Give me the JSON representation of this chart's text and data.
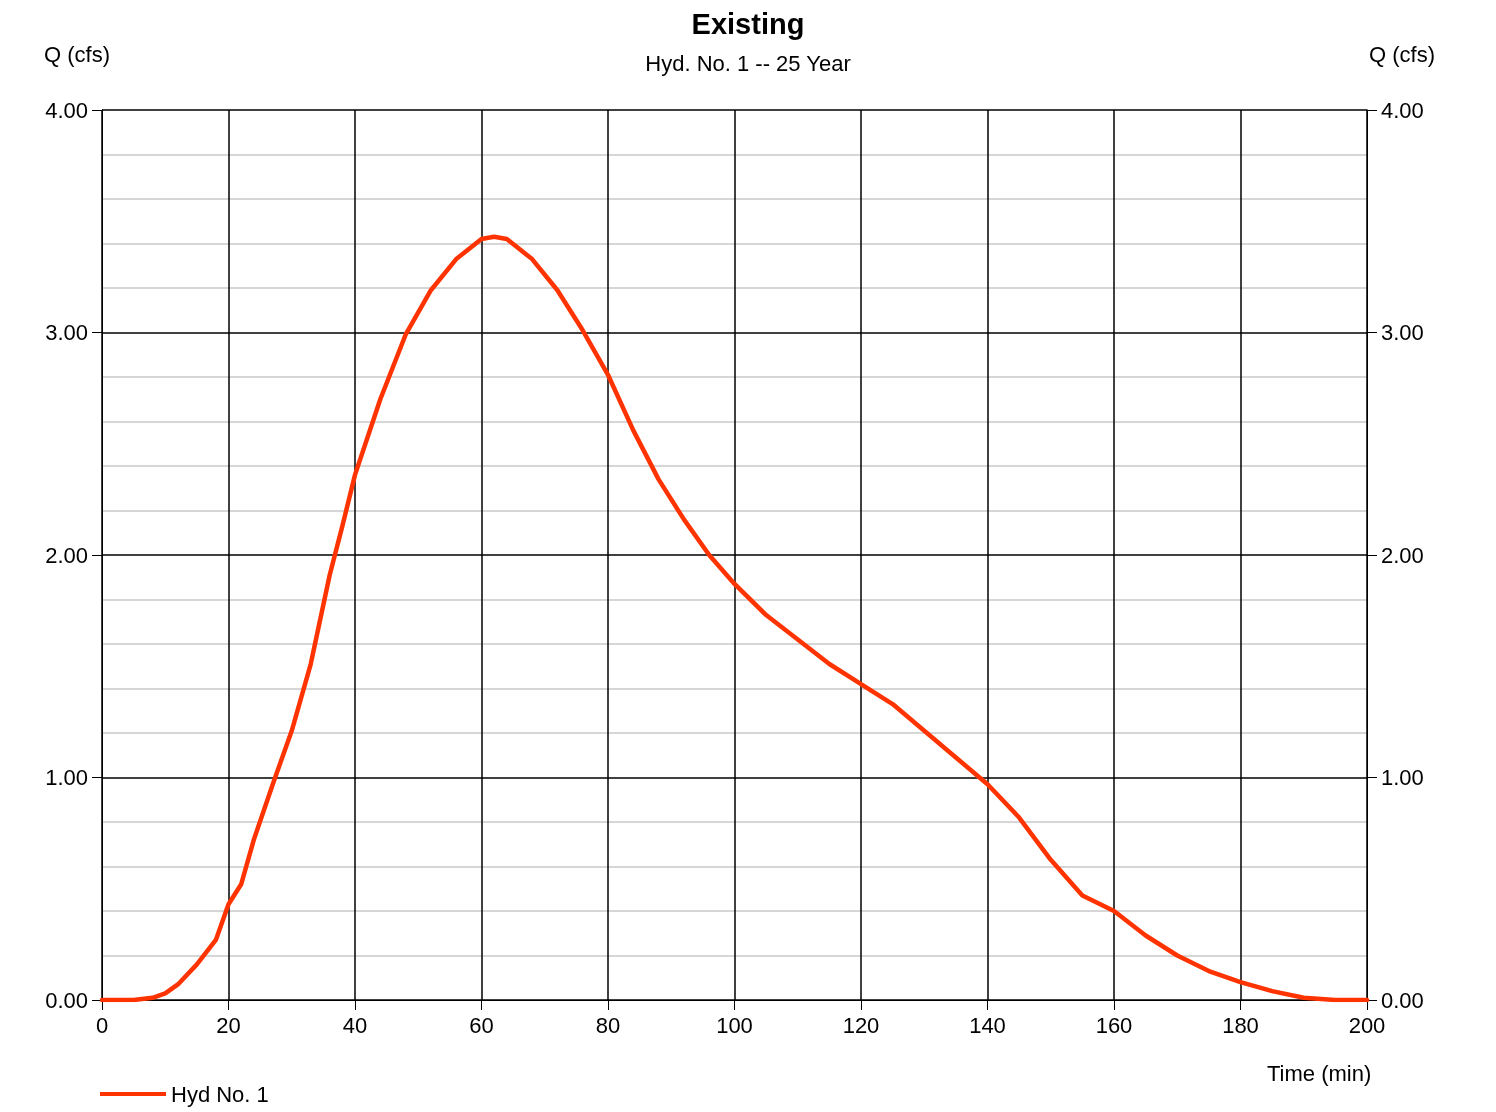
{
  "chart_data": {
    "type": "line",
    "title": "Existing",
    "subtitle": "Hyd. No. 1 -- 25 Year",
    "xlabel": "Time (min)",
    "ylabel": "Q (cfs)",
    "y2label": "Q (cfs)",
    "x": [
      0,
      5,
      8,
      10,
      12,
      15,
      18,
      20,
      22,
      24,
      27,
      30,
      33,
      36,
      38,
      40,
      44,
      48,
      52,
      56,
      60,
      62,
      64,
      68,
      72,
      76,
      80,
      84,
      88,
      92,
      96,
      100,
      105,
      110,
      115,
      120,
      125,
      130,
      135,
      140,
      145,
      150,
      155,
      160,
      165,
      170,
      175,
      180,
      185,
      190,
      195,
      200
    ],
    "series": [
      {
        "name": "Hyd No. 1",
        "color": "#ff3300",
        "values": [
          0,
          0,
          0.01,
          0.03,
          0.07,
          0.16,
          0.27,
          0.43,
          0.52,
          0.72,
          0.97,
          1.21,
          1.51,
          1.91,
          2.13,
          2.36,
          2.7,
          2.99,
          3.19,
          3.33,
          3.42,
          3.43,
          3.42,
          3.33,
          3.19,
          3.01,
          2.81,
          2.56,
          2.34,
          2.16,
          2.0,
          1.87,
          1.73,
          1.62,
          1.51,
          1.42,
          1.33,
          1.21,
          1.09,
          0.97,
          0.82,
          0.63,
          0.47,
          0.4,
          0.29,
          0.2,
          0.13,
          0.08,
          0.04,
          0.01,
          0,
          0
        ]
      }
    ],
    "xlim": [
      0,
      200
    ],
    "xticks": [
      0,
      20,
      40,
      60,
      80,
      100,
      120,
      140,
      160,
      180,
      200
    ],
    "ylim": [
      0,
      4
    ],
    "yticks": [
      {
        "value": 0,
        "label": "0.00"
      },
      {
        "value": 0.2,
        "label": null
      },
      {
        "value": 0.4,
        "label": null
      },
      {
        "value": 0.6,
        "label": null
      },
      {
        "value": 0.8,
        "label": null
      },
      {
        "value": 1,
        "label": "1.00"
      },
      {
        "value": 1.2,
        "label": null
      },
      {
        "value": 1.4,
        "label": null
      },
      {
        "value": 1.6,
        "label": null
      },
      {
        "value": 1.8,
        "label": null
      },
      {
        "value": 2,
        "label": "2.00"
      },
      {
        "value": 2.2,
        "label": null
      },
      {
        "value": 2.4,
        "label": null
      },
      {
        "value": 2.6,
        "label": null
      },
      {
        "value": 2.8,
        "label": null
      },
      {
        "value": 3,
        "label": "3.00"
      },
      {
        "value": 3.2,
        "label": null
      },
      {
        "value": 3.4,
        "label": null
      },
      {
        "value": 3.6,
        "label": null
      },
      {
        "value": 3.8,
        "label": null
      },
      {
        "value": 4,
        "label": "4.00"
      }
    ],
    "y2lim": [
      0,
      4
    ],
    "y2ticks": [
      {
        "value": 0,
        "label": "0.00"
      },
      {
        "value": 1,
        "label": "1.00"
      },
      {
        "value": 2,
        "label": "2.00"
      },
      {
        "value": 3,
        "label": "3.00"
      },
      {
        "value": 4,
        "label": "4.00"
      }
    ],
    "grid": true,
    "legend": "bottom left",
    "marker": "none",
    "line_style": "solid"
  }
}
